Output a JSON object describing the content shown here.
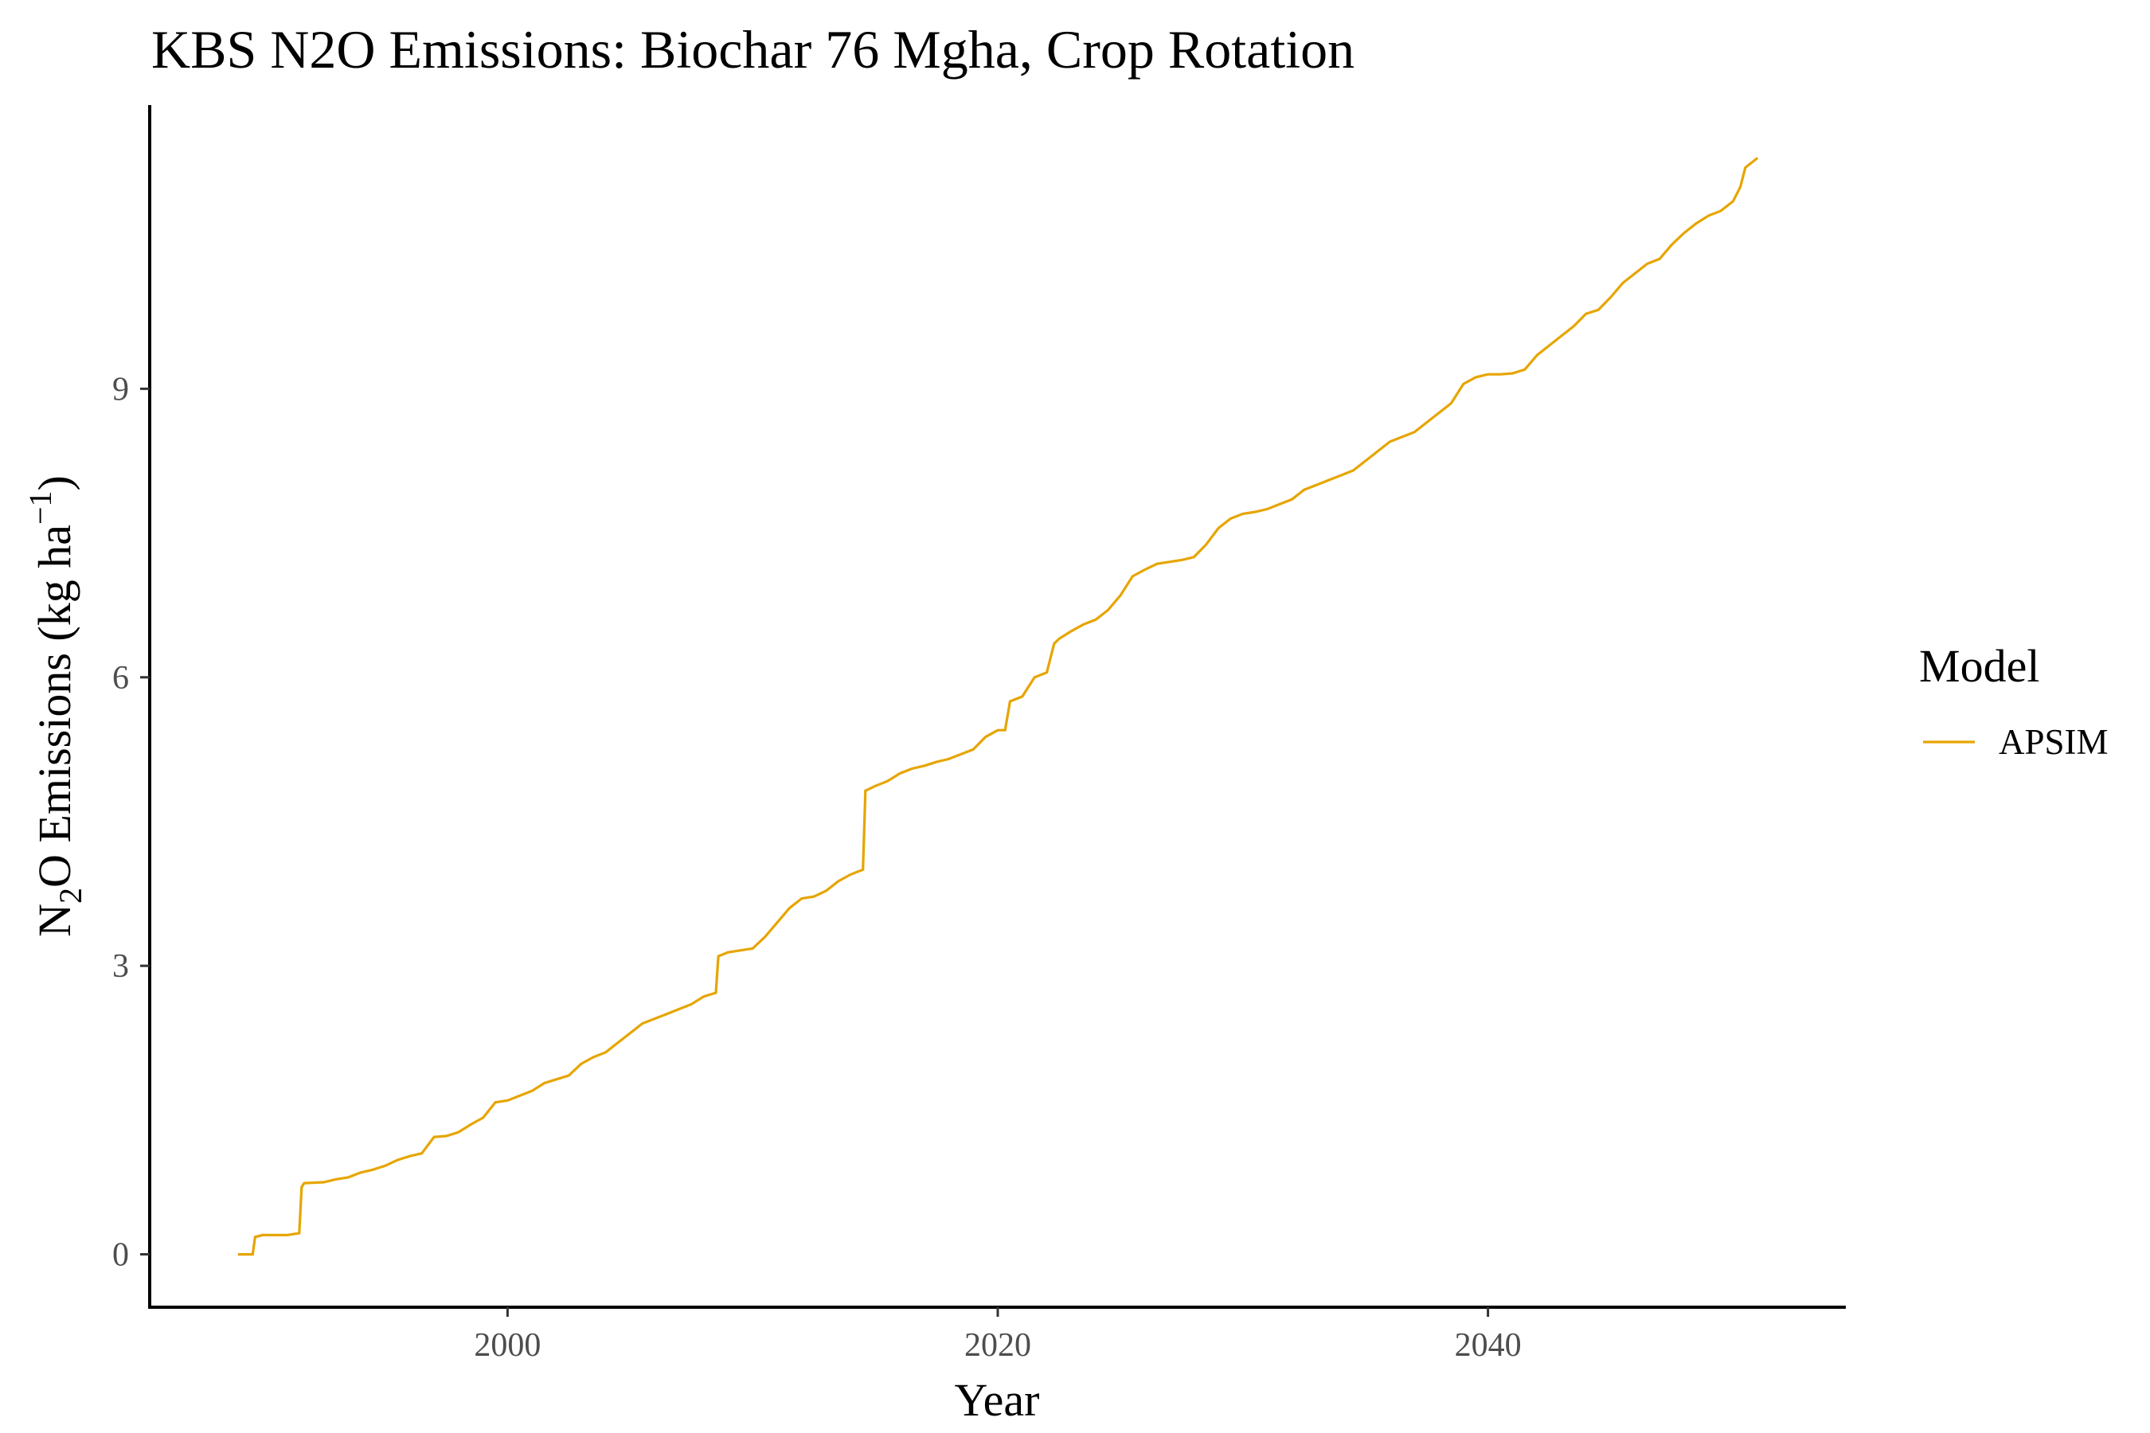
{
  "chart_data": {
    "type": "line",
    "title": "KBS N2O Emissions:  Biochar 76 Mgha, Crop Rotation",
    "xlabel": "Year",
    "ylabel": {
      "prefix": "N",
      "sub": "2",
      "middle": "O Emissions (kg ha",
      "sup": "−1",
      "suffix": ")"
    },
    "xlim": [
      1985.4,
      2054.6
    ],
    "ylim": [
      -0.55,
      11.95
    ],
    "xticks": [
      2000,
      2020,
      2040
    ],
    "xtick_labels": [
      "2000",
      "2020",
      "2040"
    ],
    "yticks": [
      0,
      3,
      6,
      9
    ],
    "ytick_labels": [
      "0",
      "3",
      "6",
      "9"
    ],
    "grid": false,
    "legend": {
      "title": "Model",
      "position": "right"
    },
    "series": [
      {
        "name": "APSIM",
        "color": "#E6A500",
        "x": [
          1989.0,
          1989.6,
          1989.7,
          1990.0,
          1991.0,
          1991.5,
          1991.6,
          1991.7,
          1992.5,
          1993.0,
          1993.5,
          1994.0,
          1994.5,
          1995.0,
          1995.5,
          1996.0,
          1996.5,
          1997.0,
          1997.5,
          1998.0,
          1998.5,
          1999.0,
          1999.5,
          2000.0,
          2000.5,
          2001.0,
          2001.5,
          2002.0,
          2002.5,
          2003.0,
          2003.5,
          2004.0,
          2004.5,
          2005.0,
          2005.5,
          2006.0,
          2006.5,
          2007.0,
          2007.5,
          2008.0,
          2008.5,
          2008.6,
          2009.0,
          2010.0,
          2010.5,
          2011.0,
          2011.5,
          2012.0,
          2012.5,
          2013.0,
          2013.5,
          2014.0,
          2014.5,
          2014.6,
          2015.0,
          2015.5,
          2016.0,
          2016.5,
          2017.0,
          2017.5,
          2018.0,
          2018.5,
          2019.0,
          2019.5,
          2020.0,
          2020.3,
          2020.5,
          2021.0,
          2021.5,
          2022.0,
          2022.3,
          2022.5,
          2023.0,
          2023.5,
          2024.0,
          2024.5,
          2025.0,
          2025.5,
          2026.0,
          2026.5,
          2027.0,
          2027.5,
          2028.0,
          2028.5,
          2029.0,
          2029.5,
          2030.0,
          2030.5,
          2031.0,
          2031.5,
          2032.0,
          2032.5,
          2033.0,
          2033.5,
          2034.0,
          2034.5,
          2035.0,
          2035.5,
          2036.0,
          2036.5,
          2037.0,
          2037.5,
          2038.0,
          2038.5,
          2039.0,
          2039.5,
          2040.0,
          2040.5,
          2041.0,
          2041.5,
          2042.0,
          2042.5,
          2043.0,
          2043.5,
          2044.0,
          2044.5,
          2045.0,
          2045.5,
          2046.0,
          2046.5,
          2047.0,
          2047.5,
          2048.0,
          2048.5,
          2049.0,
          2049.5,
          2050.0,
          2050.3,
          2050.5,
          2051.0
        ],
        "y": [
          0.0,
          0.0,
          0.18,
          0.2,
          0.2,
          0.22,
          0.7,
          0.74,
          0.75,
          0.78,
          0.8,
          0.85,
          0.88,
          0.92,
          0.98,
          1.02,
          1.05,
          1.22,
          1.23,
          1.27,
          1.35,
          1.42,
          1.58,
          1.6,
          1.65,
          1.7,
          1.78,
          1.82,
          1.86,
          1.98,
          2.05,
          2.1,
          2.2,
          2.3,
          2.4,
          2.45,
          2.5,
          2.55,
          2.6,
          2.68,
          2.72,
          3.1,
          3.14,
          3.18,
          3.3,
          3.45,
          3.6,
          3.7,
          3.72,
          3.78,
          3.88,
          3.95,
          4.0,
          4.82,
          4.87,
          4.92,
          5.0,
          5.05,
          5.08,
          5.12,
          5.15,
          5.2,
          5.25,
          5.38,
          5.45,
          5.45,
          5.75,
          5.8,
          6.0,
          6.05,
          6.35,
          6.4,
          6.48,
          6.55,
          6.6,
          6.7,
          6.85,
          7.05,
          7.12,
          7.18,
          7.2,
          7.22,
          7.25,
          7.38,
          7.55,
          7.65,
          7.7,
          7.72,
          7.75,
          7.8,
          7.85,
          7.95,
          8.0,
          8.05,
          8.1,
          8.15,
          8.25,
          8.35,
          8.45,
          8.5,
          8.55,
          8.65,
          8.75,
          8.85,
          9.05,
          9.12,
          9.15,
          9.15,
          9.16,
          9.2,
          9.35,
          9.45,
          9.55,
          9.65,
          9.78,
          9.82,
          9.95,
          10.1,
          10.2,
          10.3,
          10.35,
          10.5,
          10.62,
          10.72,
          10.8,
          10.85,
          10.95,
          11.1,
          11.3,
          11.4
        ]
      }
    ]
  }
}
